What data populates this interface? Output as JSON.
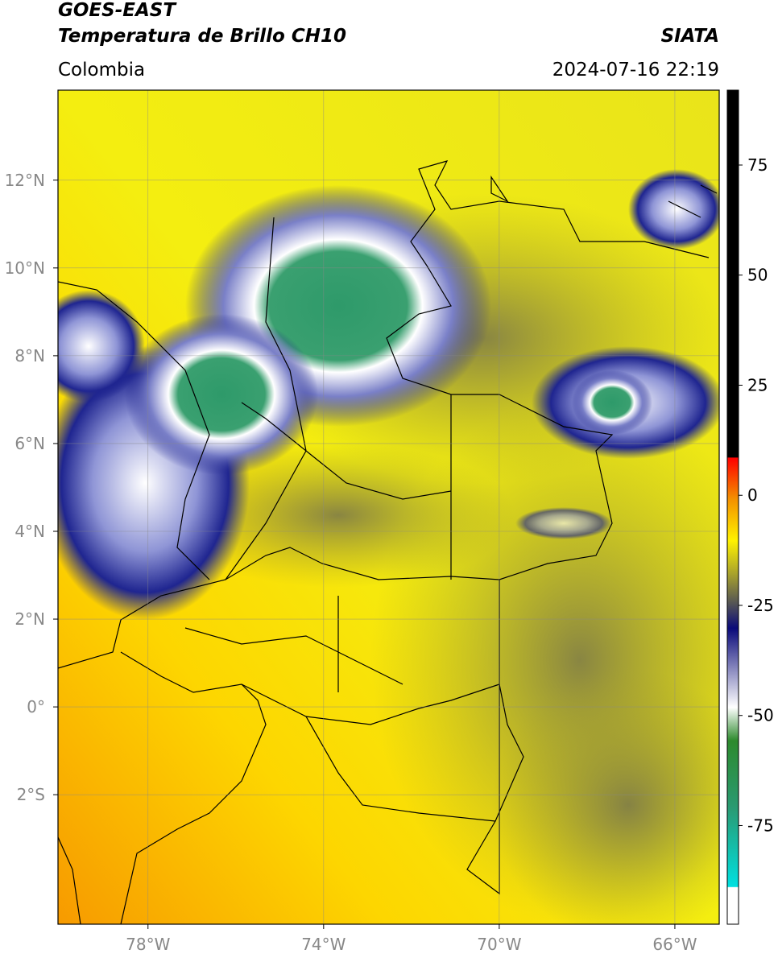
{
  "header": {
    "title": "GOES-EAST",
    "subtitle": "Temperatura de Brillo CH10",
    "source": "SIATA",
    "region": "Colombia",
    "timestamp": "2024-07-16 22:19"
  },
  "map": {
    "lonlim": [
      -80.05,
      -64.99
    ],
    "latlim": [
      -4.95,
      14.05
    ],
    "lon_ticks": [
      {
        "value": -78,
        "label": "78°W"
      },
      {
        "value": -74,
        "label": "74°W"
      },
      {
        "value": -70,
        "label": "70°W"
      },
      {
        "value": -66,
        "label": "66°W"
      }
    ],
    "lat_ticks": [
      {
        "value": 12,
        "label": "12°N"
      },
      {
        "value": 10,
        "label": "10°N"
      },
      {
        "value": 8,
        "label": "8°N"
      },
      {
        "value": 6,
        "label": "6°N"
      },
      {
        "value": 4,
        "label": "4°N"
      },
      {
        "value": 2,
        "label": "2°N"
      },
      {
        "value": 0,
        "label": "0°"
      },
      {
        "value": -2,
        "label": "2°S"
      }
    ]
  },
  "colorbar": {
    "lim": [
      -97.4,
      92
    ],
    "ticks": [
      75,
      50,
      25,
      0,
      -25,
      -50,
      -75
    ]
  }
}
